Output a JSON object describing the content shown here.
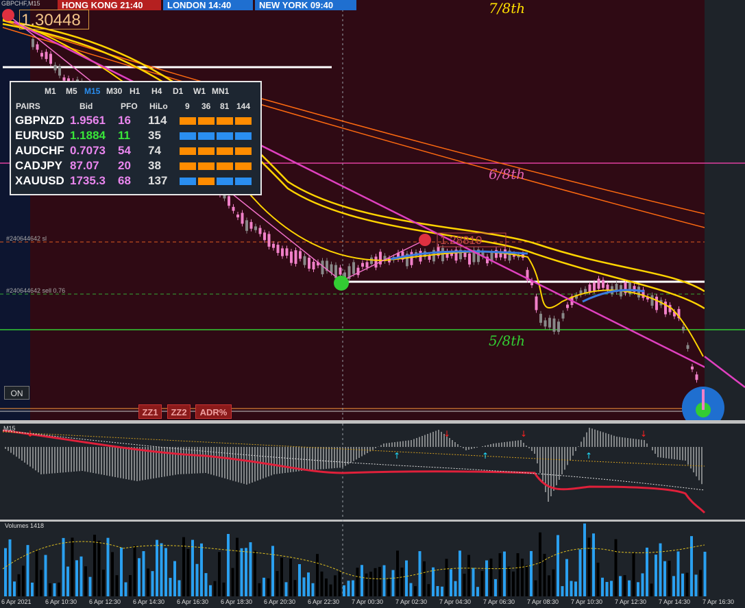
{
  "header": {
    "symbol_tag": "GBPCHF,M15",
    "clocks": [
      {
        "label": "HONG KONG 21:40"
      },
      {
        "label": "LONDON   14:40"
      },
      {
        "label": "NEW YORK  09:40"
      }
    ],
    "current_price": "1.30448"
  },
  "dashboard": {
    "timeframes": [
      "M1",
      "M5",
      "M15",
      "M30",
      "H1",
      "H4",
      "D1",
      "W1",
      "MN1"
    ],
    "active_timeframe": "M15",
    "columns": [
      "PAIRS",
      "Bid",
      "PFO",
      "HiLo",
      "9",
      "36",
      "81",
      "144"
    ],
    "rows": [
      {
        "pair": "GBPNZD",
        "bid": "1.9561",
        "bid_color": "#e986ee",
        "pfo": "16",
        "pfo_color": "#e986ee",
        "hilo": "114",
        "bars": [
          "#ff8c00",
          "#ff8c00",
          "#ff8c00",
          "#ff8c00"
        ]
      },
      {
        "pair": "EURUSD",
        "bid": "1.1884",
        "bid_color": "#39e639",
        "pfo": "11",
        "pfo_color": "#39e639",
        "hilo": "35",
        "bars": [
          "#2a8ef0",
          "#2a8ef0",
          "#2a8ef0",
          "#2a8ef0"
        ]
      },
      {
        "pair": "AUDCHF",
        "bid": "0.7073",
        "bid_color": "#e986ee",
        "pfo": "54",
        "pfo_color": "#e986ee",
        "hilo": "74",
        "bars": [
          "#ff8c00",
          "#ff8c00",
          "#ff8c00",
          "#ff8c00"
        ]
      },
      {
        "pair": "CADJPY",
        "bid": "87.07",
        "bid_color": "#e986ee",
        "pfo": "20",
        "pfo_color": "#e986ee",
        "hilo": "38",
        "bars": [
          "#ff8c00",
          "#ff8c00",
          "#ff8c00",
          "#ff8c00"
        ]
      },
      {
        "pair": "XAUUSD",
        "bid": "1735.3",
        "bid_color": "#e986ee",
        "pfo": "68",
        "pfo_color": "#e986ee",
        "hilo": "137",
        "bars": [
          "#2a8ef0",
          "#ff8c00",
          "#2a8ef0",
          "#2a8ef0"
        ]
      }
    ]
  },
  "levels": {
    "seven_eighths": "7/8th",
    "six_eighths": "6/8th",
    "five_eighths": "5/8th"
  },
  "orders": {
    "sl_label": "#240644642 sl",
    "sell_label": "#240644642 sell 0.76",
    "marker_price": "1.28819"
  },
  "buttons": {
    "on": "ON",
    "zz1": "ZZ1",
    "zz2": "ZZ2",
    "adr": "ADR%"
  },
  "indicator_pane": {
    "label": "M15"
  },
  "volume_pane": {
    "label": "Volumes 1418"
  },
  "time_axis": [
    "6 Apr 2021",
    "6 Apr 10:30",
    "6 Apr 12:30",
    "6 Apr 14:30",
    "6 Apr 16:30",
    "6 Apr 18:30",
    "6 Apr 20:30",
    "6 Apr 22:30",
    "7 Apr 00:30",
    "7 Apr 02:30",
    "7 Apr 04:30",
    "7 Apr 06:30",
    "7 Apr 08:30",
    "7 Apr 10:30",
    "7 Apr 12:30",
    "7 Apr 14:30",
    "7 Apr 16:30"
  ],
  "colors": {
    "session_bg": "#2f0a14",
    "bear": "#f080c8",
    "bull": "#888888",
    "ma_yellow": "#ffd400",
    "ma_orange": "#ff6a10",
    "trend_magenta": "#e040c0"
  }
}
